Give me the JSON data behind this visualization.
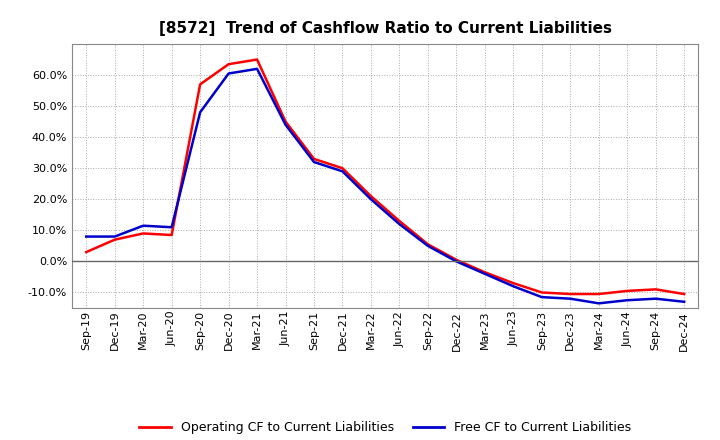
{
  "title": "[8572]  Trend of Cashflow Ratio to Current Liabilities",
  "x_labels": [
    "Sep-19",
    "Dec-19",
    "Mar-20",
    "Jun-20",
    "Sep-20",
    "Dec-20",
    "Mar-21",
    "Jun-21",
    "Sep-21",
    "Dec-21",
    "Mar-22",
    "Jun-22",
    "Sep-22",
    "Dec-22",
    "Mar-23",
    "Jun-23",
    "Sep-23",
    "Dec-23",
    "Mar-24",
    "Jun-24",
    "Sep-24",
    "Dec-24"
  ],
  "operating_cf": [
    3.0,
    7.0,
    9.0,
    8.5,
    57.0,
    63.5,
    65.0,
    45.0,
    33.0,
    30.0,
    21.0,
    13.0,
    5.5,
    0.5,
    -3.5,
    -7.0,
    -10.0,
    -10.5,
    -10.5,
    -9.5,
    -9.0,
    -10.5
  ],
  "free_cf": [
    8.0,
    8.0,
    11.5,
    11.0,
    48.0,
    60.5,
    62.0,
    44.0,
    32.0,
    29.0,
    20.0,
    12.0,
    5.0,
    0.0,
    -4.0,
    -8.0,
    -11.5,
    -12.0,
    -13.5,
    -12.5,
    -12.0,
    -13.0
  ],
  "operating_color": "#ff0000",
  "free_color": "#0000cc",
  "ylim": [
    -15,
    70
  ],
  "yticks": [
    -10.0,
    0.0,
    10.0,
    20.0,
    30.0,
    40.0,
    50.0,
    60.0
  ],
  "grid_color": "#aaaaaa",
  "background_color": "#ffffff",
  "legend_op": "Operating CF to Current Liabilities",
  "legend_free": "Free CF to Current Liabilities",
  "title_fontsize": 11,
  "tick_fontsize": 8,
  "legend_fontsize": 9
}
